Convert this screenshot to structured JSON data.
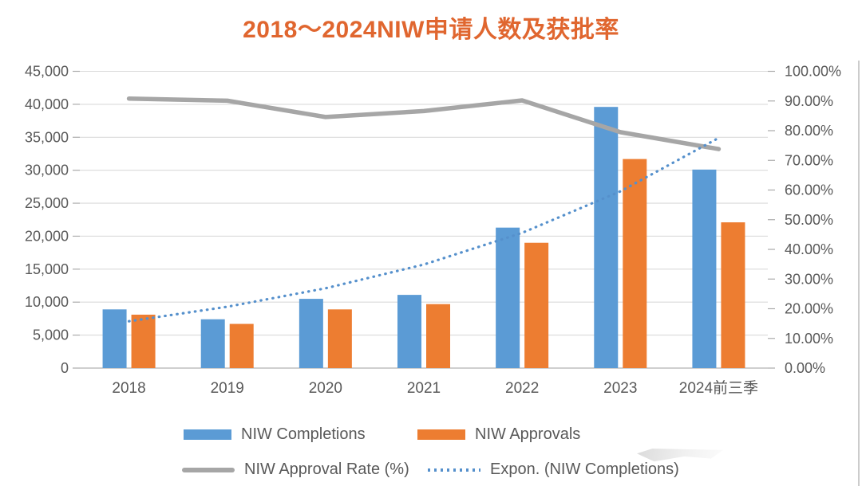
{
  "title": {
    "text": "2018～2024NIW申请人数及获批率",
    "color": "#E0662F"
  },
  "chart_data": {
    "type": "bar",
    "subtype": "combo-dual-axis",
    "title": "2018～2024NIW申请人数及获批率",
    "categories": [
      "2018",
      "2019",
      "2020",
      "2021",
      "2022",
      "2023",
      "2024前三季"
    ],
    "series": [
      {
        "name": "NIW Completions",
        "type": "bar",
        "axis": "left",
        "color": "#5B9BD5",
        "values": [
          8900,
          7400,
          10500,
          11100,
          21300,
          39600,
          30100
        ]
      },
      {
        "name": "NIW Approvals",
        "type": "bar",
        "axis": "left",
        "color": "#ED7D31",
        "values": [
          8100,
          6700,
          8900,
          9700,
          19000,
          31700,
          22100
        ]
      },
      {
        "name": "NIW Approval Rate (%)",
        "type": "line",
        "axis": "right",
        "color": "#A6A6A6",
        "values": [
          90.8,
          90.1,
          84.6,
          86.6,
          90.2,
          79.5,
          73.8
        ]
      },
      {
        "name": "Expon. (NIW Completions)",
        "type": "dotted-trendline",
        "axis": "left",
        "color": "#5590CC",
        "values": [
          7100,
          9300,
          12100,
          15700,
          20500,
          26800,
          34900
        ]
      }
    ],
    "left_axis": {
      "min": 0,
      "max": 45000,
      "step": 5000,
      "tick_labels": [
        "0",
        "5,000",
        "10,000",
        "15,000",
        "20,000",
        "25,000",
        "30,000",
        "35,000",
        "40,000",
        "45,000"
      ]
    },
    "right_axis": {
      "min": 0,
      "max": 100,
      "step": 10,
      "tick_labels": [
        "0.00%",
        "10.00%",
        "20.00%",
        "30.00%",
        "40.00%",
        "50.00%",
        "60.00%",
        "70.00%",
        "80.00%",
        "90.00%",
        "100.00%"
      ]
    },
    "grid": true,
    "legend_position": "bottom"
  },
  "legend": {
    "items": [
      {
        "label": "NIW Completions",
        "marker": "bar"
      },
      {
        "label": "NIW Approvals",
        "marker": "bar"
      },
      {
        "label": "NIW Approval Rate (%)",
        "marker": "line"
      },
      {
        "label": "Expon. (NIW Completions)",
        "marker": "dots"
      }
    ]
  },
  "colors": {
    "grid_line": "#DADADA",
    "axis_line": "#BFBFBF",
    "tick_mark": "#ABABAB",
    "axis_text": "#595959"
  }
}
